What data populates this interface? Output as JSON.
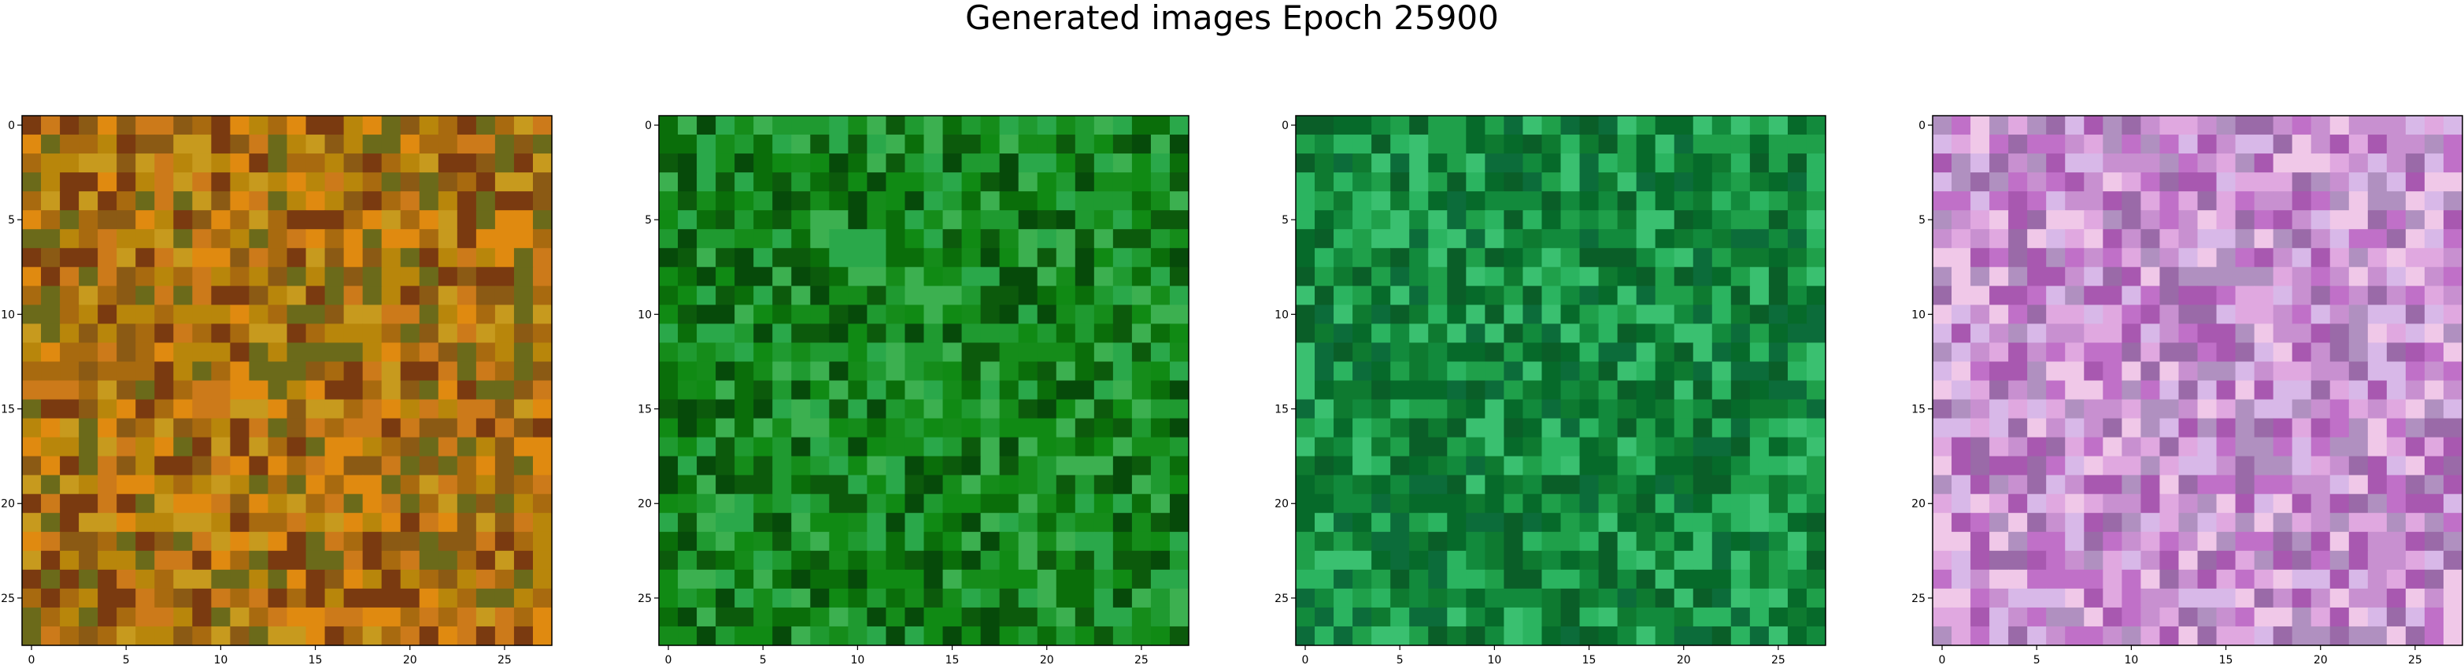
{
  "title": "Generated images Epoch 25900",
  "chart_data": [
    {
      "type": "heatmap",
      "title": "",
      "xlabel": "",
      "ylabel": "",
      "grid_size": [
        28,
        28
      ],
      "xlim": [
        -0.5,
        27.5
      ],
      "ylim": [
        27.5,
        -0.5
      ],
      "xticks": [
        0,
        5,
        10,
        15,
        20,
        25
      ],
      "yticks": [
        0,
        5,
        10,
        15,
        20,
        25
      ],
      "grid": false,
      "dominant_palette": [
        "#b8860b",
        "#cc7a1a",
        "#8b5a14",
        "#a86a0f",
        "#c79a1e",
        "#7a3a10",
        "#e08a10",
        "#6b6a1a"
      ]
    },
    {
      "type": "heatmap",
      "title": "",
      "xlabel": "",
      "ylabel": "",
      "grid_size": [
        28,
        28
      ],
      "xlim": [
        -0.5,
        27.5
      ],
      "ylim": [
        27.5,
        -0.5
      ],
      "xticks": [
        0,
        5,
        10,
        15,
        20,
        25
      ],
      "yticks": [
        0,
        5,
        10,
        15,
        20,
        25
      ],
      "grid": false,
      "dominant_palette": [
        "#0a6e0a",
        "#108a14",
        "#1f9a30",
        "#0c5a0c",
        "#2aa84a",
        "#064a0a",
        "#3cb050",
        "#158c1a"
      ]
    },
    {
      "type": "heatmap",
      "title": "",
      "xlabel": "",
      "ylabel": "",
      "grid_size": [
        28,
        28
      ],
      "xlim": [
        -0.5,
        27.5
      ],
      "ylim": [
        27.5,
        -0.5
      ],
      "xticks": [
        0,
        5,
        10,
        15,
        20,
        25
      ],
      "yticks": [
        0,
        5,
        10,
        15,
        20,
        25
      ],
      "grid": false,
      "dominant_palette": [
        "#128a3c",
        "#0e7a30",
        "#1fa04a",
        "#0a5e28",
        "#2bb460",
        "#066a2a",
        "#3ac070",
        "#0c6c3a"
      ]
    },
    {
      "type": "heatmap",
      "title": "",
      "xlabel": "",
      "ylabel": "",
      "grid_size": [
        28,
        28
      ],
      "xlim": [
        -0.5,
        27.5
      ],
      "ylim": [
        27.5,
        -0.5
      ],
      "xticks": [
        0,
        5,
        10,
        15,
        20,
        25
      ],
      "yticks": [
        0,
        5,
        10,
        15,
        20,
        25
      ],
      "grid": false,
      "dominant_palette": [
        "#c070c8",
        "#e0a8e0",
        "#a858b0",
        "#d8b8e8",
        "#9a6aa8",
        "#f0c8e8",
        "#b090c0",
        "#c890d0"
      ]
    }
  ]
}
